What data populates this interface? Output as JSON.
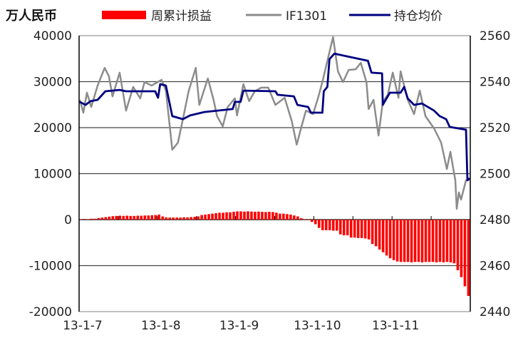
{
  "chart_data": {
    "type": "bar+line",
    "unit_label": "万人民币",
    "legend": [
      "周累计损益",
      "IF1301",
      "持仓均价"
    ],
    "legend_placement": "top",
    "colors": {
      "bars": "#ff0000",
      "if1301": "#8c8c8c",
      "avg_price": "#000080",
      "grid": "#444444"
    },
    "x_tick_labels": [
      "13-1-7",
      "13-1-8",
      "13-1-9",
      "13-1-10",
      "13-1-11"
    ],
    "x_range": [
      0,
      110
    ],
    "y_left": {
      "range": [
        -20000,
        40000
      ],
      "ticks": [
        -20000,
        -10000,
        0,
        10000,
        20000,
        30000,
        40000
      ]
    },
    "y_right": {
      "range": [
        2440,
        2560
      ],
      "ticks": [
        2440,
        2460,
        2480,
        2500,
        2520,
        2540,
        2560
      ]
    },
    "grid": true,
    "series": [
      {
        "name": "周累计损益",
        "type": "bar",
        "axis": "left",
        "values": [
          100,
          150,
          100,
          200,
          200,
          350,
          450,
          550,
          650,
          750,
          800,
          850,
          800,
          850,
          800,
          800,
          850,
          850,
          900,
          900,
          950,
          1000,
          1100,
          700,
          500,
          450,
          450,
          450,
          450,
          500,
          500,
          550,
          600,
          700,
          1000,
          1100,
          1200,
          1300,
          1400,
          1500,
          1500,
          1600,
          1600,
          1700,
          1800,
          1800,
          1750,
          1800,
          1750,
          1700,
          1750,
          1700,
          1650,
          1700,
          1650,
          1500,
          1300,
          1300,
          1200,
          1100,
          900,
          700,
          300,
          100,
          -100,
          -500,
          -1000,
          -1800,
          -2300,
          -2300,
          -2300,
          -2400,
          -2400,
          -3200,
          -3400,
          -3400,
          -3900,
          -3900,
          -4000,
          -4000,
          -4100,
          -4300,
          -5300,
          -5800,
          -6500,
          -7100,
          -7800,
          -8400,
          -8800,
          -9100,
          -9200,
          -9200,
          -9200,
          -9300,
          -9200,
          -9200,
          -9300,
          -9200,
          -9200,
          -9200,
          -9300,
          -9200,
          -9300,
          -9200,
          -9300,
          -9500,
          -11000,
          -12500,
          -14500,
          -16600
        ]
      },
      {
        "name": "IF1301",
        "type": "line",
        "axis": "right",
        "points": [
          [
            0.2,
            2532.1
          ],
          [
            1.2,
            2526.5
          ],
          [
            2.2,
            2535.2
          ],
          [
            3.4,
            2529.0
          ],
          [
            5.2,
            2538.3
          ],
          [
            7.2,
            2546.0
          ],
          [
            8.4,
            2542.3
          ],
          [
            9.4,
            2533.6
          ],
          [
            11.4,
            2543.9
          ],
          [
            13.2,
            2527.4
          ],
          [
            15.2,
            2537.7
          ],
          [
            17.2,
            2532.7
          ],
          [
            18.4,
            2539.8
          ],
          [
            20.4,
            2538.3
          ],
          [
            23.2,
            2540.8
          ],
          [
            24.4,
            2536.1
          ],
          [
            26.2,
            2510.4
          ],
          [
            27.8,
            2513.5
          ],
          [
            29.2,
            2523.7
          ],
          [
            30.8,
            2535.8
          ],
          [
            32.8,
            2546.0
          ],
          [
            33.8,
            2529.9
          ],
          [
            36.2,
            2541.4
          ],
          [
            37.8,
            2532.1
          ],
          [
            38.8,
            2525.0
          ],
          [
            40.4,
            2520.6
          ],
          [
            41.8,
            2529.0
          ],
          [
            43.8,
            2532.7
          ],
          [
            44.4,
            2525.3
          ],
          [
            46.2,
            2538.9
          ],
          [
            47.8,
            2531.5
          ],
          [
            49.4,
            2535.8
          ],
          [
            51.2,
            2537.4
          ],
          [
            53.2,
            2537.4
          ],
          [
            55.2,
            2529.9
          ],
          [
            57.8,
            2533.0
          ],
          [
            59.8,
            2522.8
          ],
          [
            61.2,
            2512.6
          ],
          [
            62.4,
            2519.7
          ],
          [
            63.8,
            2527.4
          ],
          [
            65.8,
            2525.9
          ],
          [
            67.2,
            2533.0
          ],
          [
            68.4,
            2539.8
          ],
          [
            70.4,
            2552.9
          ],
          [
            71.4,
            2559.4
          ],
          [
            72.8,
            2544.5
          ],
          [
            74.2,
            2539.8
          ],
          [
            75.8,
            2545.1
          ],
          [
            77.8,
            2545.4
          ],
          [
            79.2,
            2548.2
          ],
          [
            80.8,
            2539.8
          ],
          [
            81.4,
            2528.1
          ],
          [
            82.8,
            2532.1
          ],
          [
            84.2,
            2516.6
          ],
          [
            85.4,
            2531.2
          ],
          [
            86.8,
            2534.3
          ],
          [
            88.2,
            2543.9
          ],
          [
            89.8,
            2533.0
          ],
          [
            90.4,
            2544.5
          ],
          [
            92.4,
            2532.1
          ],
          [
            94.2,
            2525.9
          ],
          [
            95.8,
            2536.1
          ],
          [
            97.4,
            2525.0
          ],
          [
            99.8,
            2519.7
          ],
          [
            101.8,
            2513.5
          ],
          [
            103.4,
            2502.0
          ],
          [
            104.4,
            2509.5
          ],
          [
            105.8,
            2497.1
          ],
          [
            106.2,
            2484.7
          ],
          [
            106.8,
            2491.8
          ],
          [
            107.4,
            2488.7
          ],
          [
            108.8,
            2497.1
          ],
          [
            109.8,
            2497.4
          ]
        ]
      },
      {
        "name": "持仓均价",
        "type": "line",
        "axis": "right",
        "points": [
          [
            0.2,
            2531.2
          ],
          [
            1.8,
            2529.9
          ],
          [
            3.2,
            2531.5
          ],
          [
            5.2,
            2532.1
          ],
          [
            7.4,
            2535.8
          ],
          [
            11.4,
            2536.4
          ],
          [
            13.2,
            2535.8
          ],
          [
            21.4,
            2535.8
          ],
          [
            22.2,
            2533.0
          ],
          [
            22.8,
            2538.9
          ],
          [
            24.4,
            2538.3
          ],
          [
            26.2,
            2525.0
          ],
          [
            29.2,
            2523.7
          ],
          [
            31.2,
            2525.3
          ],
          [
            35.2,
            2526.8
          ],
          [
            43.2,
            2528.1
          ],
          [
            43.8,
            2531.2
          ],
          [
            45.4,
            2531.2
          ],
          [
            46.2,
            2536.1
          ],
          [
            55.2,
            2535.8
          ],
          [
            55.8,
            2534.3
          ],
          [
            60.4,
            2533.6
          ],
          [
            61.4,
            2529.9
          ],
          [
            64.4,
            2529.0
          ],
          [
            65.2,
            2526.5
          ],
          [
            68.4,
            2526.5
          ],
          [
            68.8,
            2535.8
          ],
          [
            69.8,
            2537.7
          ],
          [
            70.4,
            2549.8
          ],
          [
            71.8,
            2552.2
          ],
          [
            81.2,
            2549.1
          ],
          [
            82.2,
            2543.9
          ],
          [
            85.2,
            2543.6
          ],
          [
            85.4,
            2529.9
          ],
          [
            87.4,
            2535.2
          ],
          [
            90.4,
            2535.2
          ],
          [
            91.4,
            2537.7
          ],
          [
            92.4,
            2532.7
          ],
          [
            94.2,
            2529.9
          ],
          [
            96.4,
            2530.5
          ],
          [
            99.8,
            2527.4
          ],
          [
            101.4,
            2525.0
          ],
          [
            103.2,
            2523.7
          ],
          [
            104.2,
            2520.3
          ],
          [
            108.8,
            2519.1
          ],
          [
            109.2,
            2497.1
          ],
          [
            109.8,
            2498.0
          ]
        ]
      }
    ]
  }
}
